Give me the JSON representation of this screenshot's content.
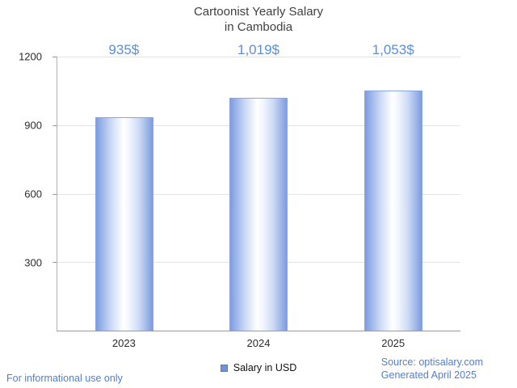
{
  "title": {
    "line1": "Cartoonist Yearly Salary",
    "line2": "in Cambodia"
  },
  "chart_data": {
    "type": "bar",
    "title": "Cartoonist Yearly Salary in Cambodia",
    "categories": [
      "2023",
      "2024",
      "2025"
    ],
    "values": [
      935,
      1019,
      1053
    ],
    "value_labels": [
      "935$",
      "1,019$",
      "1,053$"
    ],
    "series_name": "Salary in USD",
    "xlabel": "",
    "ylabel": "",
    "ylim": [
      0,
      1200
    ],
    "yticks": [
      300,
      600,
      900,
      1200
    ],
    "grid": true,
    "legend_position": "bottom-center",
    "colors": {
      "bar_edge": "#7d9de0",
      "bar_center": "#ffffff",
      "value_label_text": "#5b8dd9",
      "gridline": "#e3e3e3",
      "axis": "#9a9a9a",
      "title_text": "#404040",
      "tick_text": "#2b2b2b"
    }
  },
  "legend": {
    "label": "Salary in USD",
    "swatch_color": "#7093d8"
  },
  "footer": {
    "disclaimer": "For informational use only",
    "source": "Source: optisalary.com",
    "generated": "Generated April 2025",
    "text_color": "#4d7fd6"
  }
}
